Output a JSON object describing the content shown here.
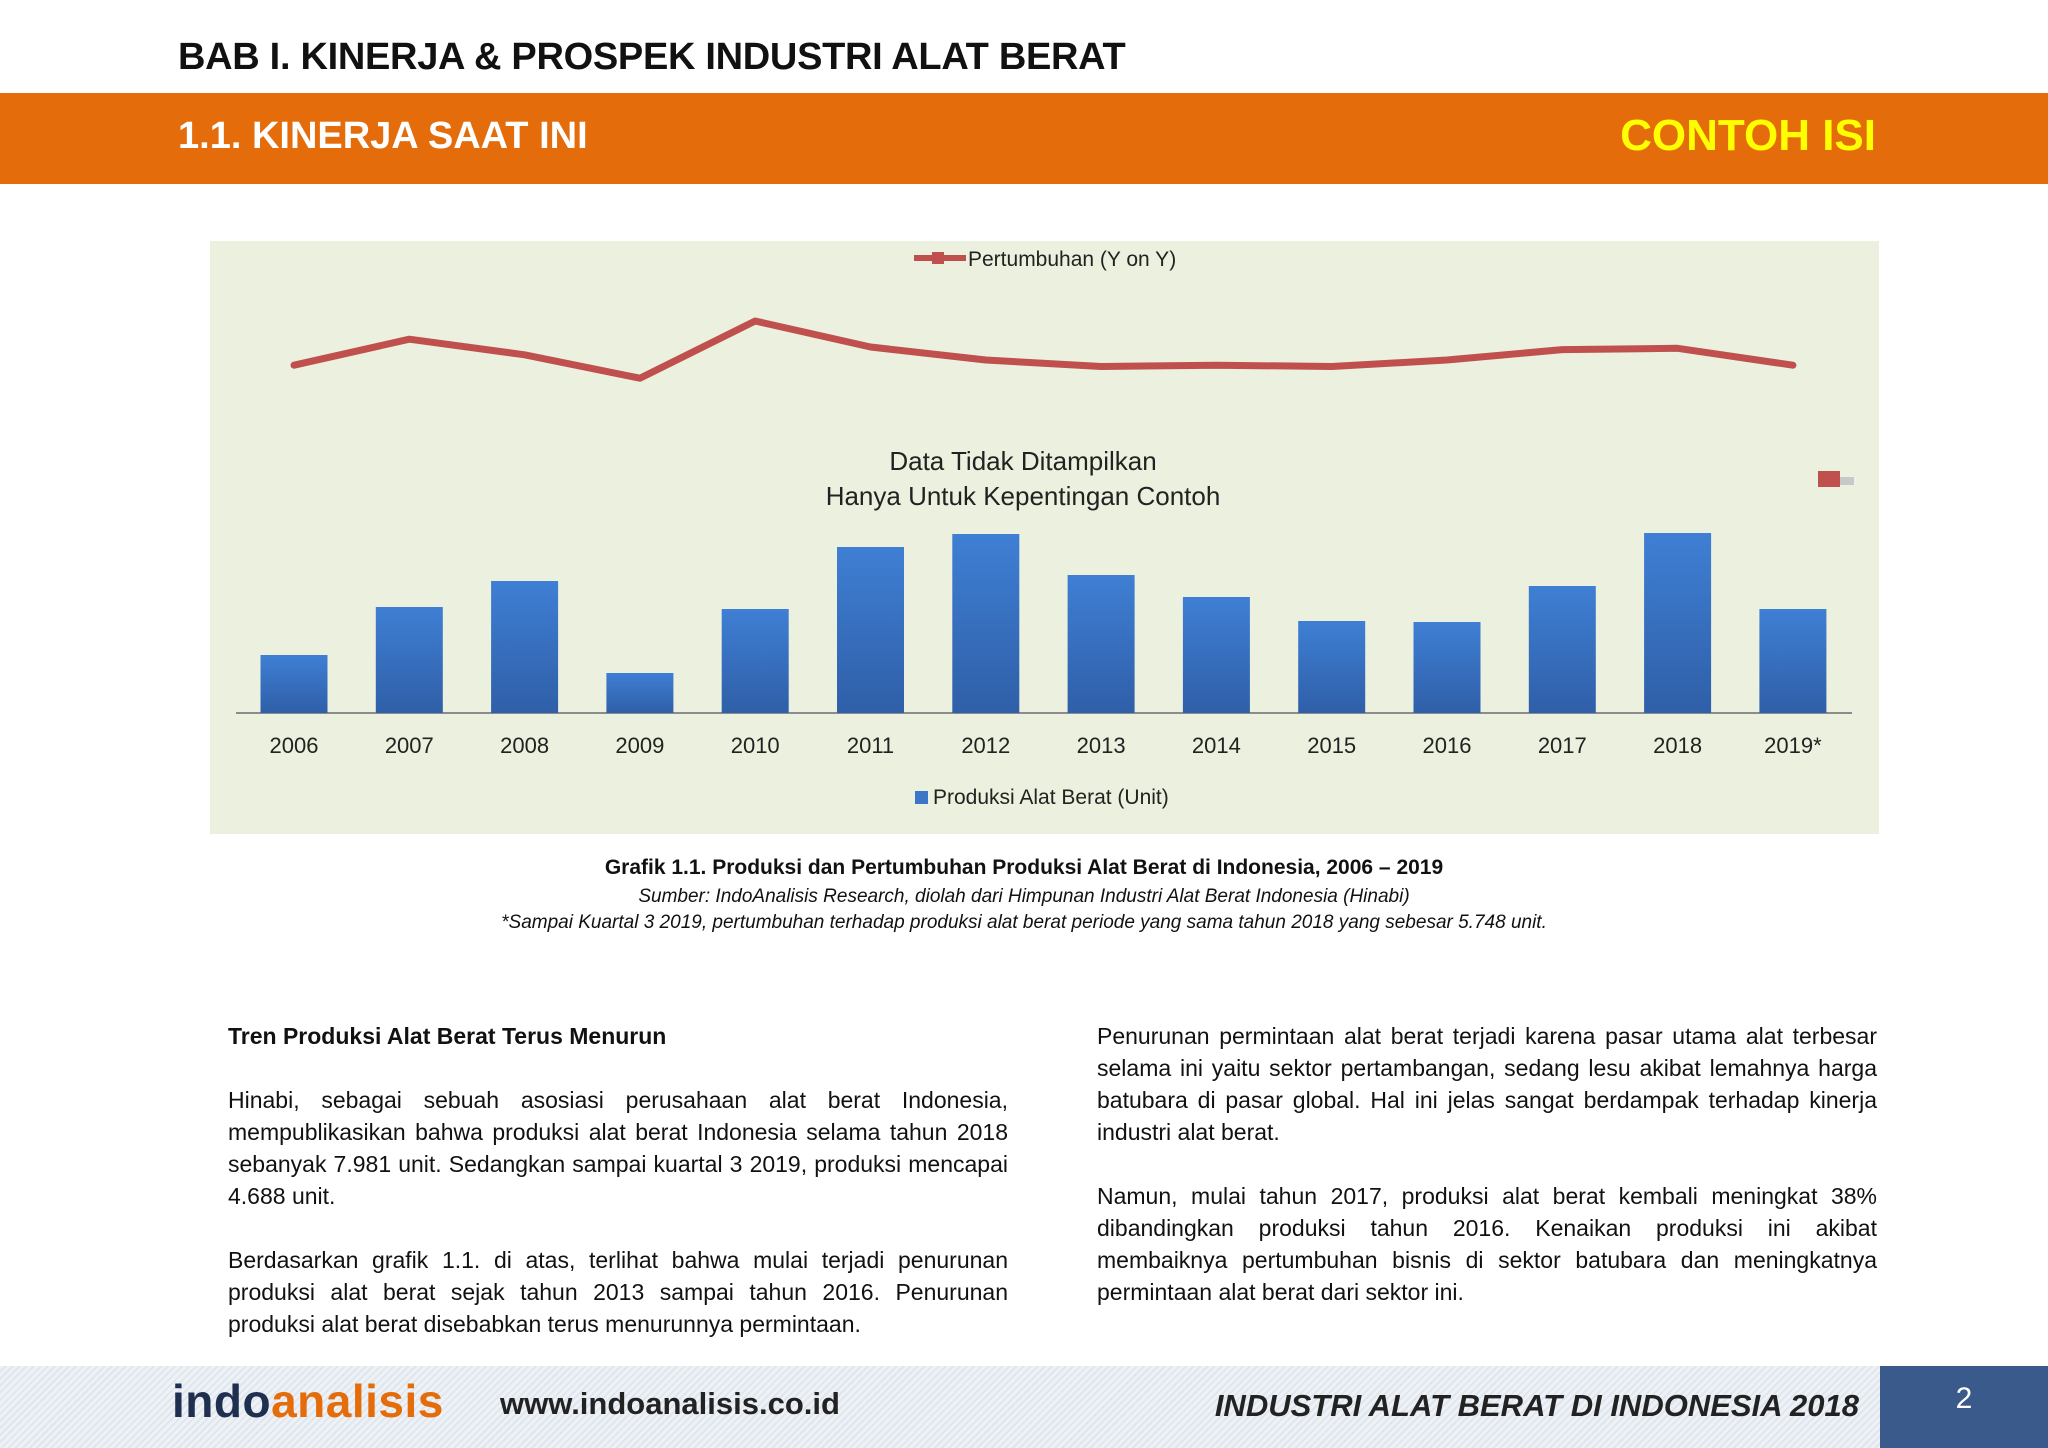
{
  "header": {
    "bab_title": "BAB I. KINERJA & PROSPEK INDUSTRI ALAT BERAT",
    "section_title": "1.1. KINERJA SAAT INI",
    "sample_label": "CONTOH ISI"
  },
  "chart_data": {
    "type": "bar",
    "categories": [
      "2006",
      "2007",
      "2008",
      "2009",
      "2010",
      "2011",
      "2012",
      "2013",
      "2014",
      "2015",
      "2016",
      "2017",
      "2018",
      "2019*"
    ],
    "series": [
      {
        "name": "Produksi Alat Berat (Unit)",
        "type": "bar",
        "values": [
          58,
          106,
          132,
          40,
          104,
          166,
          179,
          138,
          116,
          92,
          91,
          127,
          180,
          104
        ]
      },
      {
        "name": "Pertumbuhan (Y on Y)",
        "type": "line",
        "values": [
          26,
          46,
          34,
          16,
          60,
          40,
          30,
          25,
          26,
          25,
          30,
          38,
          39,
          26
        ]
      }
    ],
    "legend": [
      "Pertumbuhan (Y on Y)",
      "Produksi Alat Berat (Unit)"
    ],
    "watermark": [
      "Data Tidak Ditampilkan",
      "Hanya Untuk Kepentingan Contoh"
    ],
    "colors": {
      "bar": "#3b76c8",
      "line": "#c0504d",
      "background": "#ebf1de"
    }
  },
  "caption": {
    "title": "Grafik 1.1. Produksi dan Pertumbuhan Produksi Alat Berat di Indonesia, 2006 – 2019",
    "source": "Sumber: IndoAnalisis Research, diolah dari Himpunan Industri Alat Berat Indonesia (Hinabi)",
    "note": "*Sampai Kuartal 3 2019, pertumbuhan terhadap produksi alat berat periode yang sama tahun 2018 yang sebesar 5.748 unit."
  },
  "body": {
    "left": {
      "heading": "Tren Produksi Alat Berat Terus Menurun",
      "p1": "Hinabi, sebagai sebuah asosiasi perusahaan alat berat Indonesia, mempublikasikan bahwa produksi alat berat Indonesia selama tahun 2018 sebanyak 7.981 unit. Sedangkan sampai kuartal 3 2019, produksi mencapai 4.688 unit.",
      "p2": "Berdasarkan grafik 1.1. di atas, terlihat bahwa mulai terjadi penurunan produksi alat berat sejak tahun 2013 sampai tahun 2016. Penurunan produksi alat berat disebabkan terus menurunnya permintaan."
    },
    "right": {
      "p1": "Penurunan permintaan alat berat terjadi karena pasar utama alat terbesar selama ini yaitu sektor pertambangan, sedang lesu akibat lemahnya harga batubara di pasar global. Hal ini jelas sangat berdampak terhadap kinerja industri alat berat.",
      "p2": "Namun, mulai tahun 2017, produksi alat berat kembali meningkat 38% dibandingkan produksi tahun 2016. Kenaikan produksi ini akibat membaiknya pertumbuhan bisnis di sektor batubara dan meningkatnya permintaan alat berat dari sektor ini."
    }
  },
  "footer": {
    "logo_indo": "indo",
    "logo_analisis": "analisis",
    "website": "www.indoanalisis.co.id",
    "title": "INDUSTRI ALAT BERAT DI INDONESIA 2018",
    "page_number": "2"
  }
}
